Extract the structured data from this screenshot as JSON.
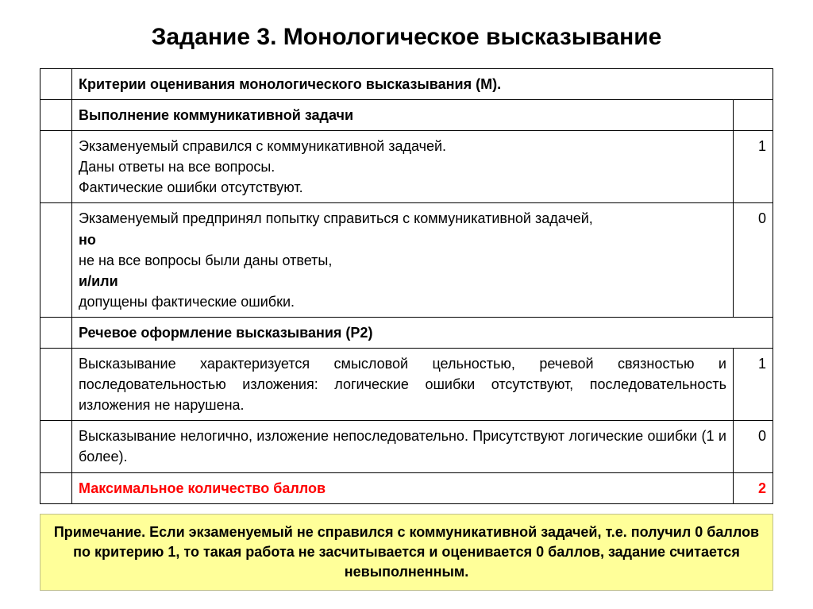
{
  "title": "Задание 3. Монологическое высказывание",
  "table": {
    "header1": "Критерии оценивания монологического высказывания (М).",
    "section1": "Выполнение коммуникативной задачи",
    "row1": {
      "text": "Экзаменуемый справился с коммуникативной задачей.\nДаны ответы на все вопросы.\nФактические ошибки отсутствуют.",
      "score": "1"
    },
    "row2": {
      "line1": "Экзаменуемый предпринял попытку справиться с коммуникативной задачей,",
      "no": "но",
      "line2": "не на все вопросы были даны ответы,",
      "andor": "и/или",
      "line3": "допущены фактические ошибки.",
      "score": "0"
    },
    "section2": "Речевое оформление высказывания (Р2)",
    "row3": {
      "text": "Высказывание характеризуется смысловой цельностью, речевой связностью и последовательностью изложения: логические ошибки отсутствуют, последовательность изложения не нарушена.",
      "score": "1"
    },
    "row4": {
      "text": "Высказывание нелогично, изложение непоследовательно. Присутствуют логические ошибки (1 и более).",
      "score": "0"
    },
    "max": {
      "label": "Максимальное количество баллов",
      "score": "2"
    }
  },
  "note": "Примечание. Если экзаменуемый не справился с коммуникативной задачей, т.е. получил 0 баллов по критерию 1, то такая работа не засчитывается и оценивается 0 баллов, задание считается невыполненным.",
  "colors": {
    "text": "#000000",
    "max_row": "#ff0000",
    "note_bg": "#ffff99",
    "note_border": "#bfbf8f",
    "border": "#000000",
    "background": "#ffffff"
  },
  "fonts": {
    "title_size_pt": 30,
    "body_size_pt": 18,
    "family": "Arial"
  }
}
